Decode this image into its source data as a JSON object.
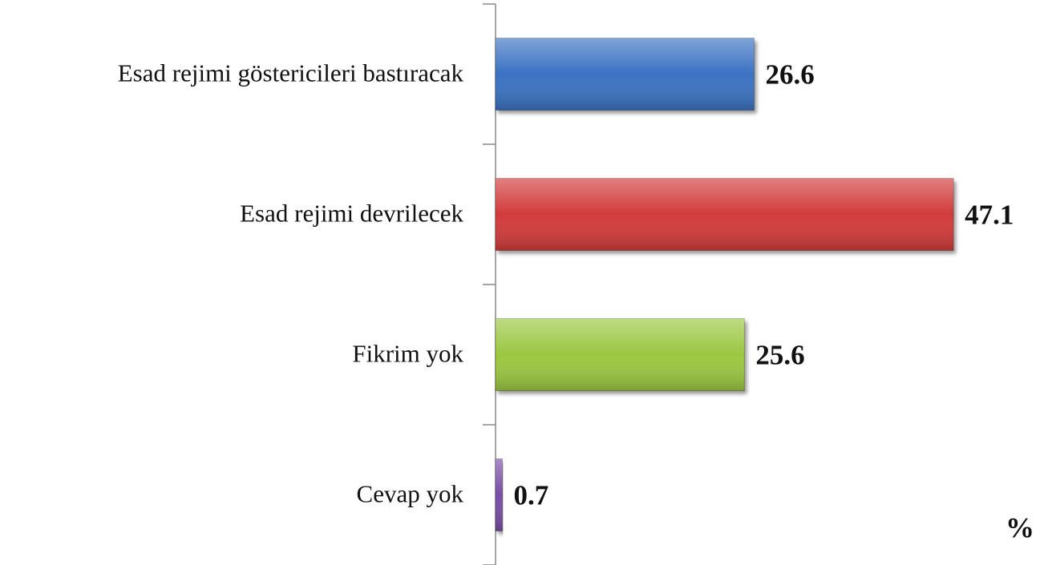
{
  "chart_data": {
    "type": "bar",
    "orientation": "horizontal",
    "categories": [
      "Esad rejimi göstericileri bastıracak",
      "Esad rejimi devrilecek",
      "Fikrim yok",
      "Cevap yok"
    ],
    "values": [
      26.6,
      47.1,
      25.6,
      0.7
    ],
    "colors": [
      "#3a72c2",
      "#d23a3a",
      "#9bc740",
      "#7a4ea6"
    ],
    "xlim": [
      0,
      56
    ],
    "unit_label": "%"
  }
}
